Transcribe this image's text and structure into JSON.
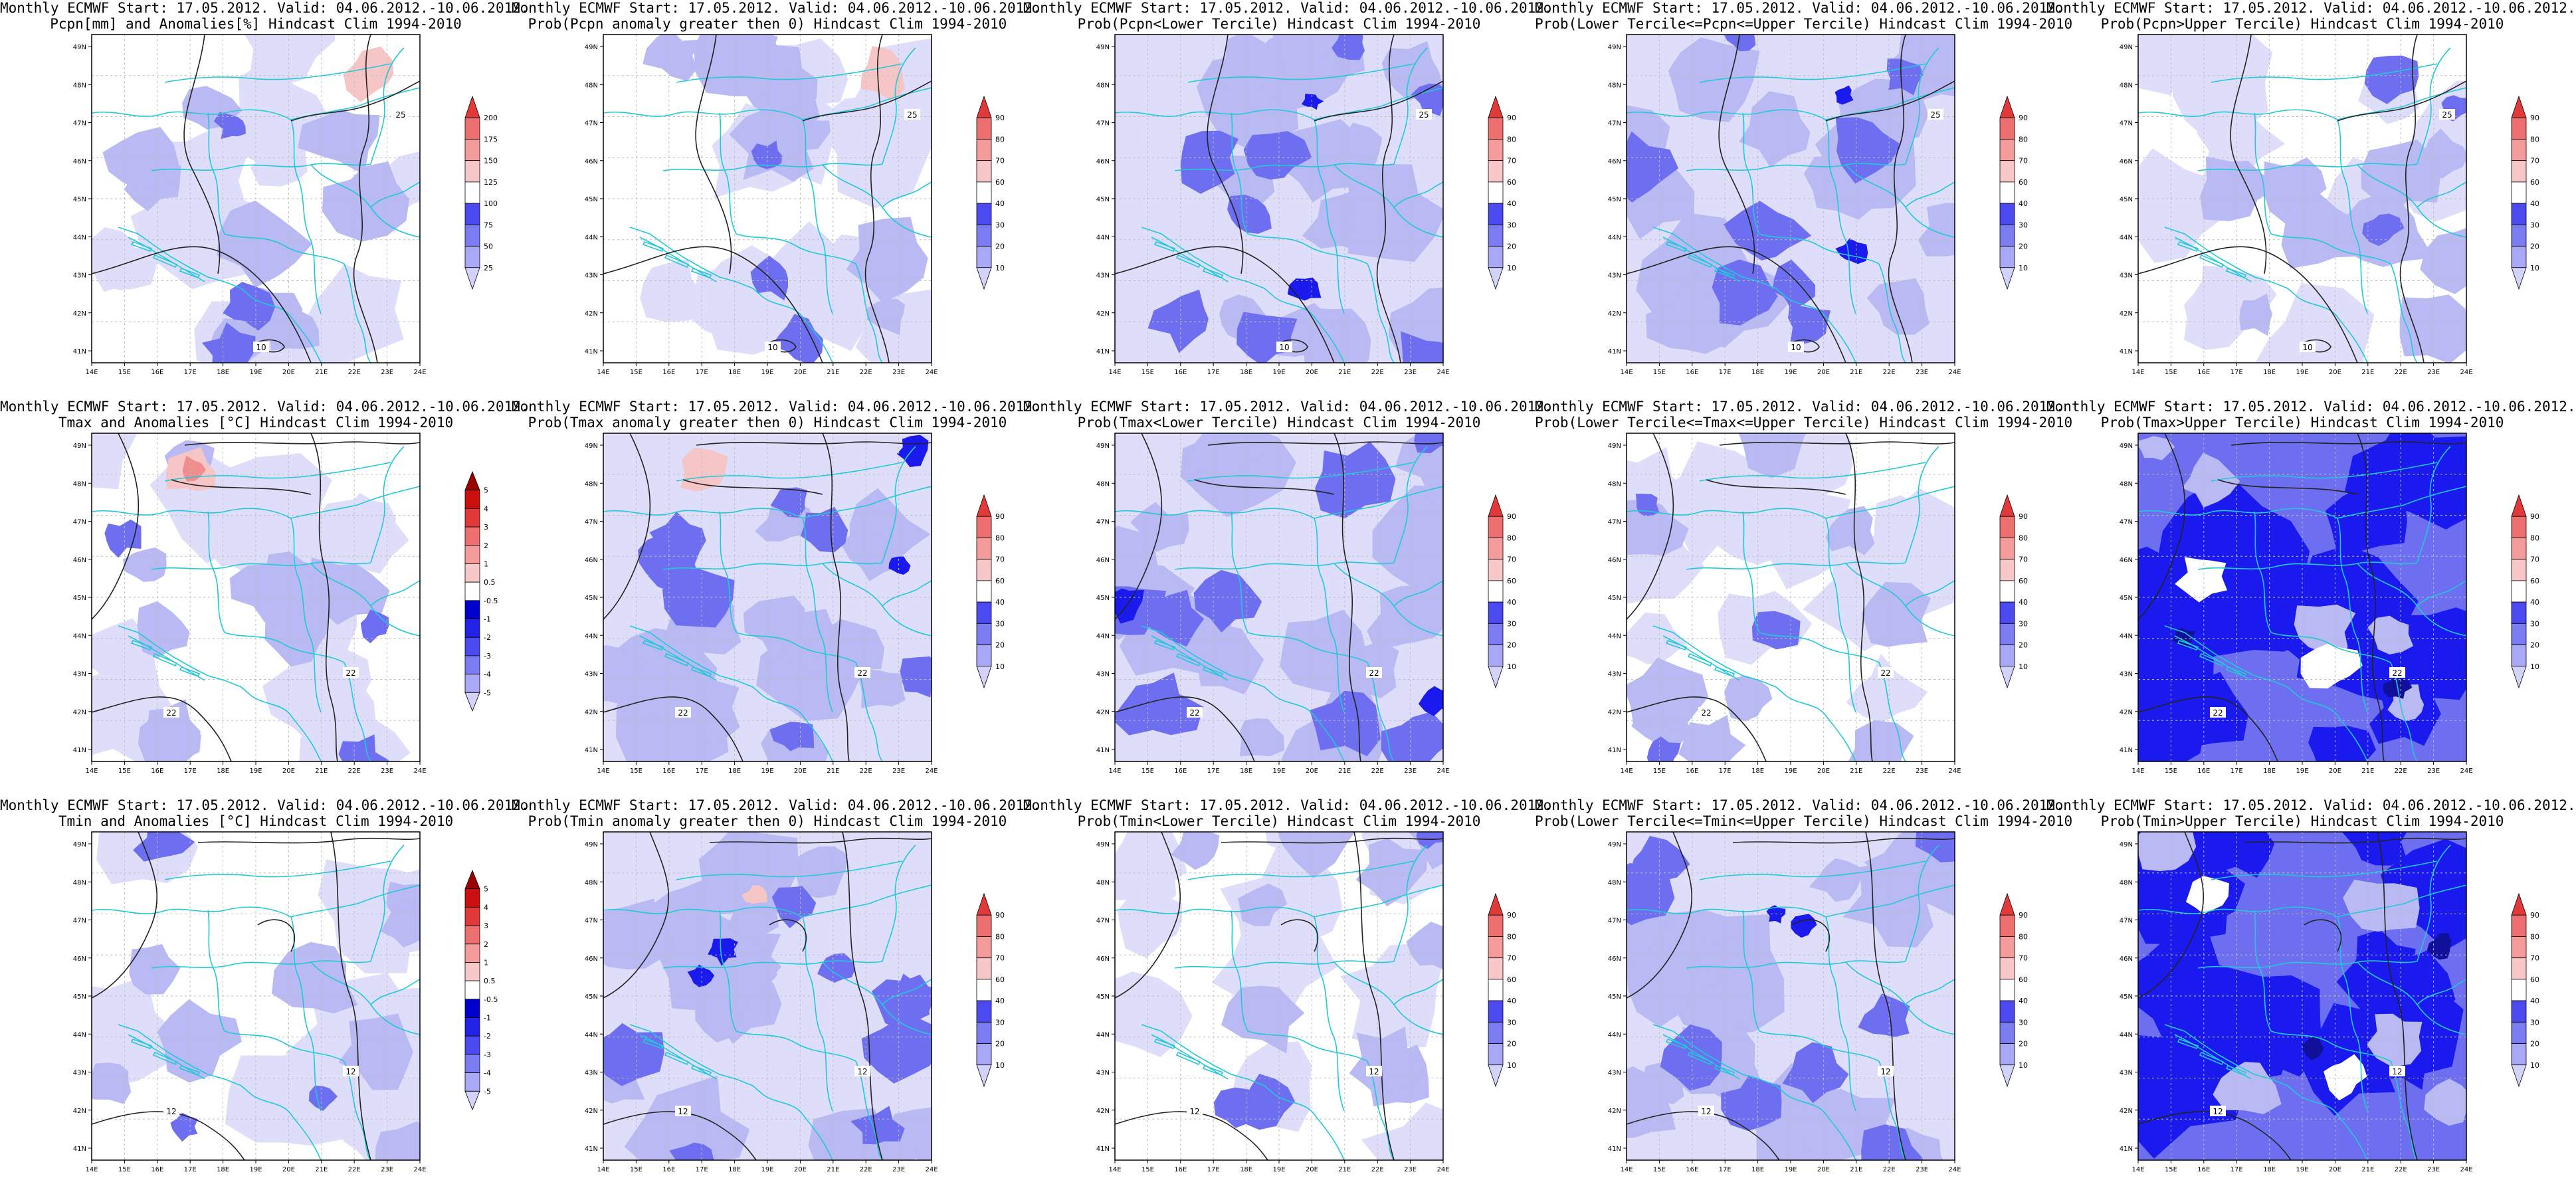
{
  "figure": {
    "lon_ticks": [
      "14E",
      "15E",
      "16E",
      "17E",
      "18E",
      "19E",
      "20E",
      "21E",
      "22E",
      "23E",
      "24E"
    ],
    "lat_ticks": [
      "41N",
      "42N",
      "43N",
      "44N",
      "45N",
      "46N",
      "47N",
      "48N",
      "49N"
    ],
    "colors": {
      "blue_dark": "#1a1aee",
      "blue_mid": "#6e6ef0",
      "blue_light": "#b9b9f4",
      "blue_pale": "#dedefa",
      "red_pale": "#f6c6c6",
      "red_light": "#ef8d8d",
      "coast_border": "#22c8d8",
      "contour": "#222222",
      "grid": "#bdbdbd"
    }
  },
  "legends": {
    "pcpn": [
      "200",
      "175",
      "150",
      "125",
      "100",
      "75",
      "50",
      "25"
    ],
    "prob": [
      "90",
      "80",
      "70",
      "60",
      "40",
      "30",
      "20",
      "10"
    ],
    "temp": [
      "5",
      "4",
      "3",
      "2",
      "1",
      "0.5",
      "-0.5",
      "-1",
      "-2",
      "-3",
      "-4",
      "-5"
    ]
  },
  "panels": [
    {
      "line1": "Monthly ECMWF Start: 17.05.2012. Valid: 04.06.2012.-10.06.2012.",
      "line2": "Pcpn[mm] and Anomalies[%] Hindcast Clim 1994-2010",
      "legend": "pcpn",
      "shade": "light",
      "contour_labels": [
        "25",
        "10"
      ]
    },
    {
      "line1": "Monthly ECMWF Start: 17.05.2012. Valid: 04.06.2012.-10.06.2012.",
      "line2": "Prob(Pcpn anomaly greater then 0) Hindcast Clim 1994-2010",
      "legend": "prob",
      "shade": "light",
      "contour_labels": [
        "25",
        "10"
      ]
    },
    {
      "line1": "Monthly ECMWF Start: 17.05.2012. Valid: 04.06.2012.-10.06.2012.",
      "line2": "Prob(Pcpn<Lower Tercile) Hindcast Clim 1994-2010",
      "legend": "prob",
      "shade": "mid",
      "contour_labels": [
        "25",
        "10"
      ]
    },
    {
      "line1": "Monthly ECMWF Start: 17.05.2012. Valid: 04.06.2012.-10.06.2012.",
      "line2": "Prob(Lower Tercile<=Pcpn<=Upper Tercile) Hindcast Clim 1994-2010",
      "legend": "prob",
      "shade": "mid",
      "contour_labels": [
        "25",
        "10"
      ]
    },
    {
      "line1": "Monthly ECMWF Start: 17.05.2012. Valid: 04.06.2012.-10.06.2012.",
      "line2": "Prob(Pcpn>Upper Tercile) Hindcast Clim 1994-2010",
      "legend": "prob",
      "shade": "light",
      "contour_labels": [
        "25",
        "10"
      ]
    },
    {
      "line1": "Monthly ECMWF Start: 17.05.2012. Valid: 04.06.2012.-10.06.2012.",
      "line2": "Tmax and Anomalies [°C] Hindcast Clim 1994-2010",
      "legend": "temp",
      "shade": "light",
      "contour_labels": [
        "22",
        "22"
      ]
    },
    {
      "line1": "Monthly ECMWF Start: 17.05.2012. Valid: 04.06.2012.-10.06.2012.",
      "line2": "Prob(Tmax anomaly greater then 0) Hindcast Clim 1994-2010",
      "legend": "prob",
      "shade": "mid",
      "contour_labels": [
        "22",
        "22"
      ]
    },
    {
      "line1": "Monthly ECMWF Start: 17.05.2012. Valid: 04.06.2012.-10.06.2012.",
      "line2": "Prob(Tmax<Lower Tercile) Hindcast Clim 1994-2010",
      "legend": "prob",
      "shade": "mid",
      "contour_labels": [
        "22",
        "22"
      ]
    },
    {
      "line1": "Monthly ECMWF Start: 17.05.2012. Valid: 04.06.2012.-10.06.2012.",
      "line2": "Prob(Lower Tercile<=Tmax<=Upper Tercile) Hindcast Clim 1994-2010",
      "legend": "prob",
      "shade": "light",
      "contour_labels": [
        "22",
        "22"
      ]
    },
    {
      "line1": "Monthly ECMWF Start: 17.05.2012. Valid: 04.06.2012.-10.06.2012.",
      "line2": "Prob(Tmax>Upper Tercile) Hindcast Clim 1994-2010",
      "legend": "prob",
      "shade": "dark",
      "contour_labels": [
        "22",
        "22"
      ]
    },
    {
      "line1": "Monthly ECMWF Start: 17.05.2012. Valid: 04.06.2012.-10.06.2012.",
      "line2": "Tmin and Anomalies [°C] Hindcast Clim 1994-2010",
      "legend": "temp",
      "shade": "light",
      "contour_labels": [
        "12",
        "12"
      ]
    },
    {
      "line1": "Monthly ECMWF Start: 17.05.2012. Valid: 04.06.2012.-10.06.2012.",
      "line2": "Prob(Tmin anomaly greater then 0) Hindcast Clim 1994-2010",
      "legend": "prob",
      "shade": "mid",
      "contour_labels": [
        "12",
        "12"
      ]
    },
    {
      "line1": "Monthly ECMWF Start: 17.05.2012. Valid: 04.06.2012.-10.06.2012.",
      "line2": "Prob(Tmin<Lower Tercile) Hindcast Clim 1994-2010",
      "legend": "prob",
      "shade": "light",
      "contour_labels": [
        "12",
        "12"
      ]
    },
    {
      "line1": "Monthly ECMWF Start: 17.05.2012. Valid: 04.06.2012.-10.06.2012.",
      "line2": "Prob(Lower Tercile<=Tmin<=Upper Tercile) Hindcast Clim 1994-2010",
      "legend": "prob",
      "shade": "mid",
      "contour_labels": [
        "12",
        "12"
      ]
    },
    {
      "line1": "Monthly ECMWF Start: 17.05.2012. Valid: 04.06.2012.-10.06.2012.",
      "line2": "Prob(Tmin>Upper Tercile) Hindcast Clim 1994-2010",
      "legend": "prob",
      "shade": "dark",
      "contour_labels": [
        "12",
        "12"
      ]
    }
  ]
}
